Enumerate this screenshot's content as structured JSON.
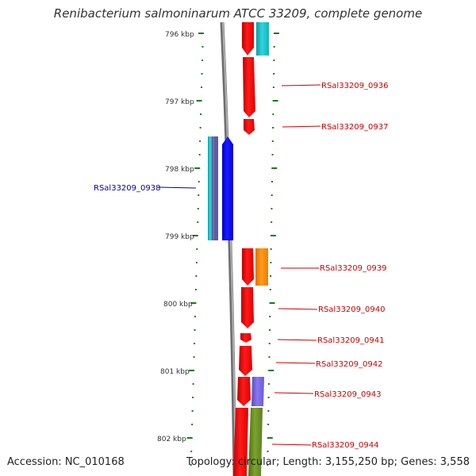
{
  "title": "Renibacterium salmoninarum ATCC 33209, complete genome",
  "footer": {
    "accession": "Accession: NC_010168",
    "topology": "Topology: circular; Length: 3,155,250 bp; Genes: 3,558"
  },
  "colors": {
    "backbone": "#8a8a8a",
    "tick": "#1a7a1a",
    "forward_cds": "#ff0000",
    "reverse_cds": "#0000ff",
    "other_feature_cyan": "#22c4cc",
    "other_feature_orange": "#ff8800",
    "other_feature_purple": "#7766dd",
    "other_feature_olive": "#6b8e23",
    "label_forward": "#cc0000",
    "label_reverse": "#0000aa"
  },
  "scale": {
    "kbp_labels": [
      "796 kbp",
      "797 kbp",
      "798 kbp",
      "799 kbp",
      "800 kbp",
      "801 kbp",
      "802 kbp"
    ]
  },
  "genes": [
    {
      "label": "RSal33209_0936",
      "strand": "forward"
    },
    {
      "label": "RSal33209_0937",
      "strand": "forward"
    },
    {
      "label": "RSal33209_0938",
      "strand": "reverse"
    },
    {
      "label": "RSal33209_0939",
      "strand": "forward"
    },
    {
      "label": "RSal33209_0940",
      "strand": "forward"
    },
    {
      "label": "RSal33209_0941",
      "strand": "forward"
    },
    {
      "label": "RSal33209_0942",
      "strand": "forward"
    },
    {
      "label": "RSal33209_0943",
      "strand": "forward"
    },
    {
      "label": "RSal33209_0944",
      "strand": "forward"
    }
  ]
}
